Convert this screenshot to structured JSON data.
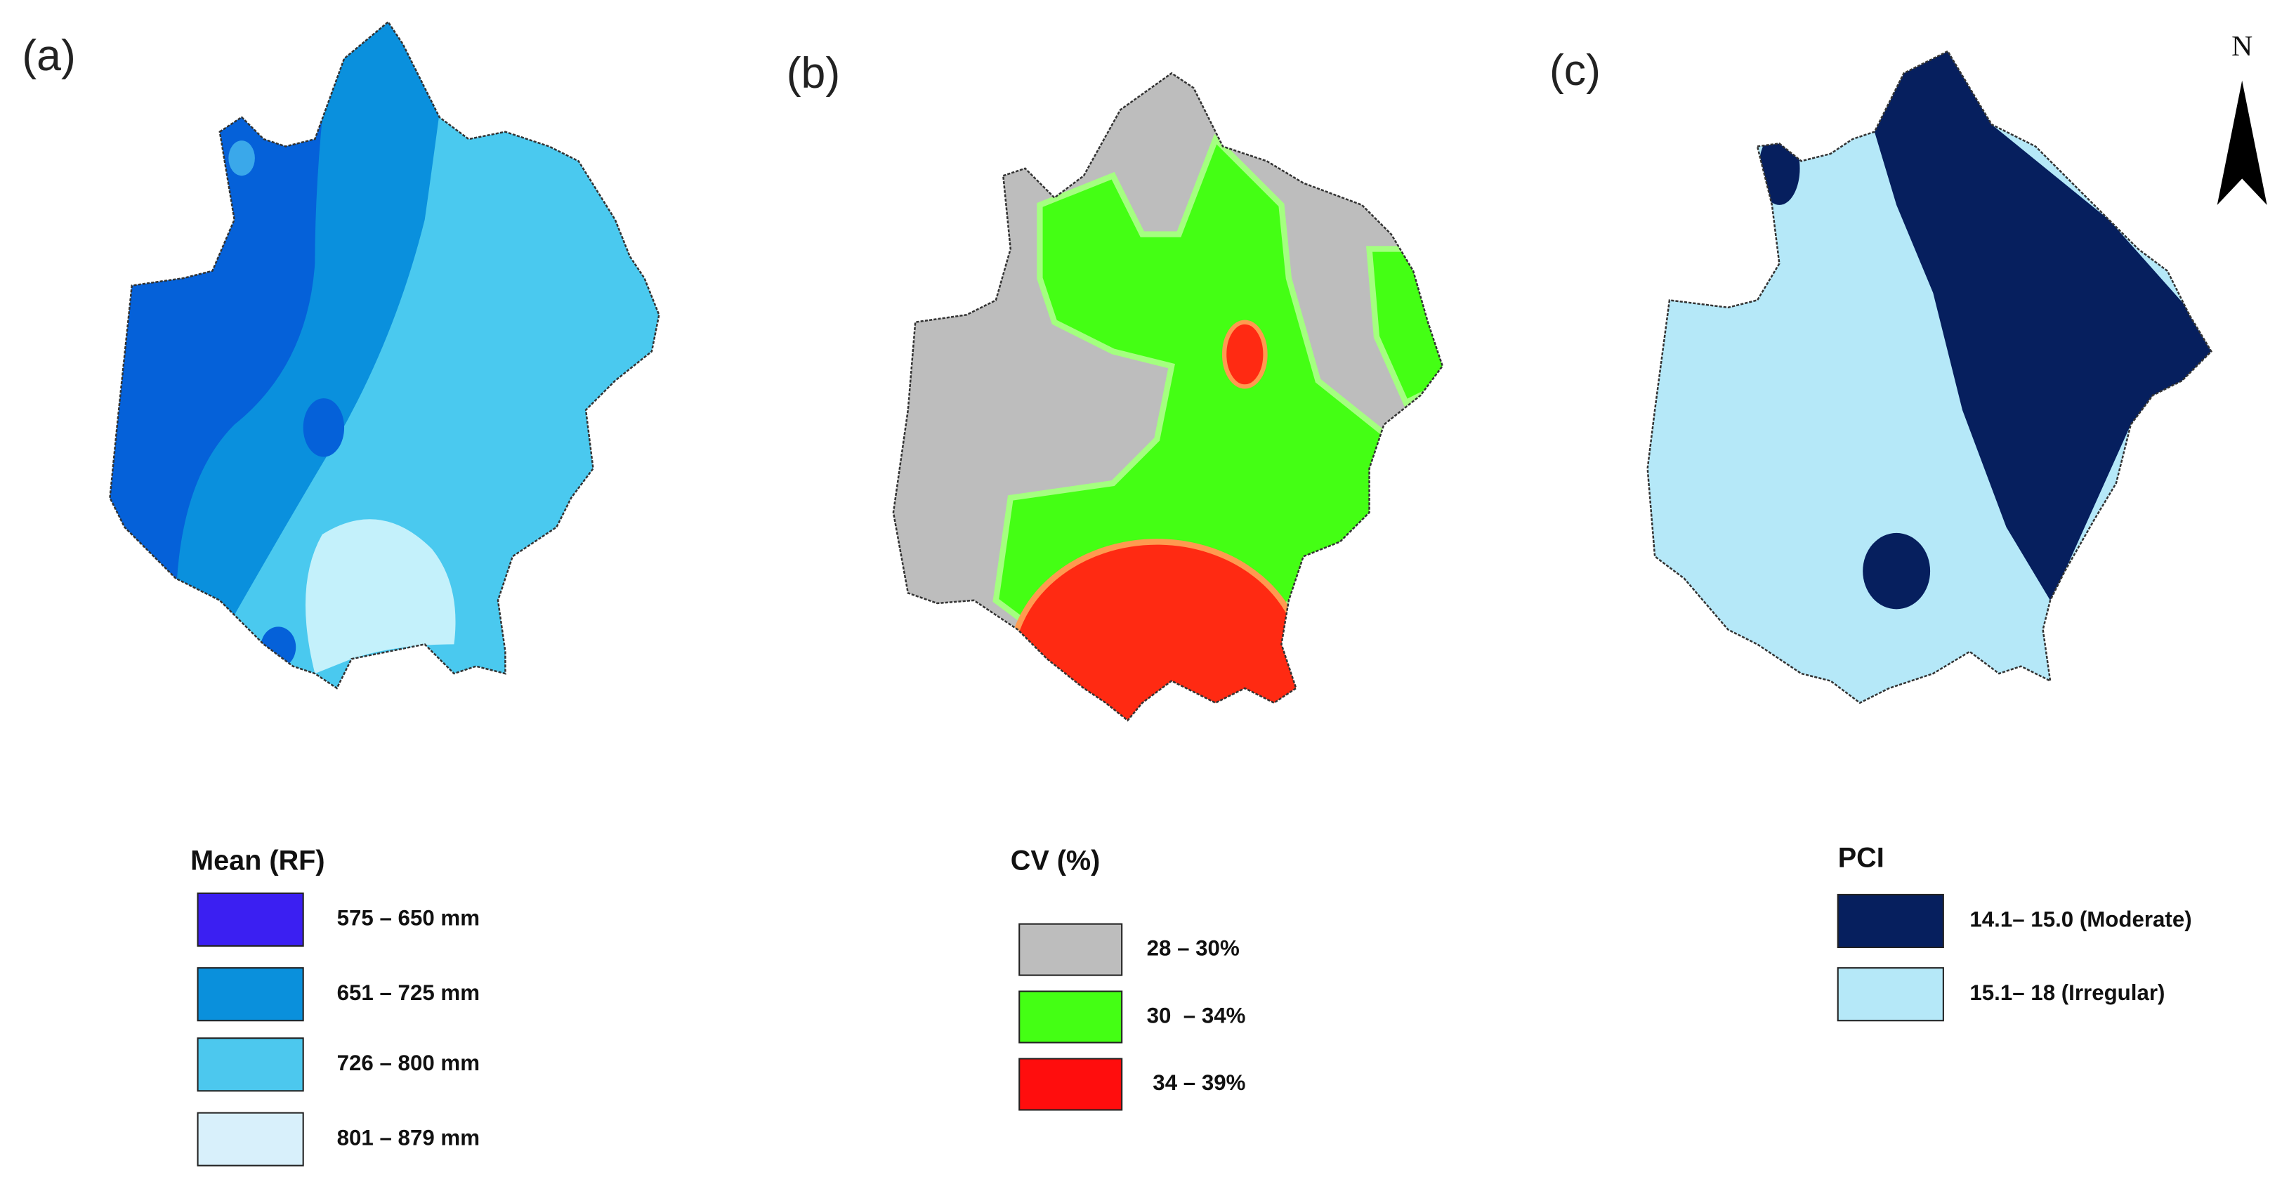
{
  "panels": [
    {
      "label": "(a)",
      "legend": {
        "title": "Mean (RF)",
        "items": [
          {
            "label": "575 – 650 mm",
            "color": "#3b1ff2"
          },
          {
            "label": "651 – 725 mm",
            "color": "#0a90dc"
          },
          {
            "label": "726 – 800 mm",
            "color": "#4cc8ee"
          },
          {
            "label": "801 – 879 mm",
            "color": "#d8f0fb"
          }
        ]
      }
    },
    {
      "label": "(b)",
      "legend": {
        "title": "CV (%)",
        "items": [
          {
            "label": "28 – 30%",
            "color": "#bdbdbd"
          },
          {
            "label": "30  – 34%",
            "color": "#44ff14"
          },
          {
            "label": " 34 – 39%",
            "color": "#ff0d0d"
          }
        ]
      }
    },
    {
      "label": "(c)",
      "legend": {
        "title": "PCI",
        "items": [
          {
            "label": "14.1– 15.0 (Moderate)",
            "color": "#061f5e"
          },
          {
            "label": "15.1– 18 (Irregular)",
            "color": "#b5e8f8"
          }
        ]
      }
    }
  ],
  "north_arrow": "N"
}
